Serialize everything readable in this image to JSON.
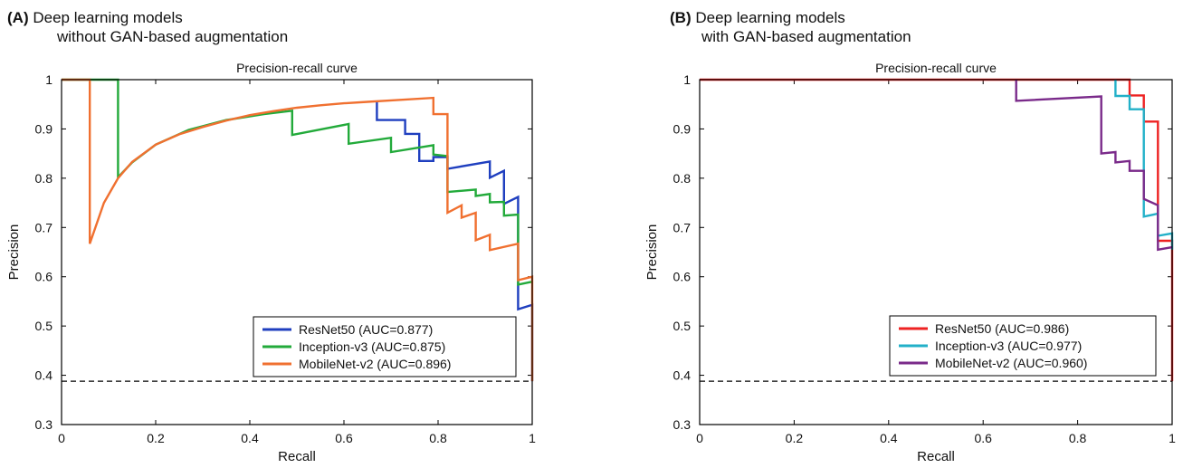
{
  "panels": [
    {
      "tag": "(A)",
      "heading_line1": "Deep learning models",
      "heading_line2": "without GAN-based augmentation"
    },
    {
      "tag": "(B)",
      "heading_line1": "Deep learning models",
      "heading_line2": "with GAN-based augmentation"
    }
  ],
  "chart_data": [
    {
      "type": "line",
      "title": "Precision-recall curve",
      "xlabel": "Recall",
      "ylabel": "Precision",
      "xlim": [
        0,
        1
      ],
      "ylim": [
        0.3,
        1
      ],
      "xticks": [
        "0",
        "0.2",
        "0.4",
        "0.6",
        "0.8",
        "1"
      ],
      "yticks": [
        "0.3",
        "0.4",
        "0.5",
        "0.6",
        "0.7",
        "0.8",
        "0.9",
        "1"
      ],
      "legend_position": "bottom-right",
      "baseline": 0.388,
      "series": [
        {
          "name": "ResNet50 (AUC=0.877)",
          "color": "#1f3fbf",
          "points": [
            [
              0.67,
              0.957
            ],
            [
              0.67,
              0.918
            ],
            [
              0.73,
              0.918
            ],
            [
              0.73,
              0.89
            ],
            [
              0.76,
              0.89
            ],
            [
              0.76,
              0.835
            ],
            [
              0.79,
              0.835
            ],
            [
              0.79,
              0.843
            ],
            [
              0.82,
              0.843
            ],
            [
              0.82,
              0.819
            ],
            [
              0.91,
              0.834
            ],
            [
              0.91,
              0.801
            ],
            [
              0.94,
              0.815
            ],
            [
              0.94,
              0.748
            ],
            [
              0.97,
              0.762
            ],
            [
              0.97,
              0.534
            ],
            [
              1.0,
              0.543
            ],
            [
              1.0,
              0.388
            ]
          ]
        },
        {
          "name": "Inception-v3 (AUC=0.875)",
          "color": "#22aa3a",
          "points": [
            [
              0.0,
              1.0
            ],
            [
              0.12,
              1.0
            ],
            [
              0.12,
              0.802
            ],
            [
              0.15,
              0.832
            ],
            [
              0.2,
              0.868
            ],
            [
              0.27,
              0.898
            ],
            [
              0.35,
              0.918
            ],
            [
              0.43,
              0.93
            ],
            [
              0.49,
              0.937
            ],
            [
              0.49,
              0.888
            ],
            [
              0.61,
              0.91
            ],
            [
              0.61,
              0.87
            ],
            [
              0.7,
              0.882
            ],
            [
              0.7,
              0.853
            ],
            [
              0.79,
              0.867
            ],
            [
              0.79,
              0.848
            ],
            [
              0.82,
              0.845
            ],
            [
              0.82,
              0.772
            ],
            [
              0.88,
              0.777
            ],
            [
              0.88,
              0.764
            ],
            [
              0.91,
              0.768
            ],
            [
              0.91,
              0.751
            ],
            [
              0.94,
              0.752
            ],
            [
              0.94,
              0.724
            ],
            [
              0.97,
              0.726
            ],
            [
              0.97,
              0.584
            ],
            [
              1.0,
              0.59
            ]
          ]
        },
        {
          "name": "MobileNet-v2 (AUC=0.896)",
          "color": "#f07030",
          "points": [
            [
              0.0,
              1.0
            ],
            [
              0.06,
              1.0
            ],
            [
              0.06,
              0.667
            ],
            [
              0.09,
              0.75
            ],
            [
              0.12,
              0.8
            ],
            [
              0.15,
              0.833
            ],
            [
              0.2,
              0.868
            ],
            [
              0.25,
              0.889
            ],
            [
              0.3,
              0.904
            ],
            [
              0.35,
              0.917
            ],
            [
              0.4,
              0.928
            ],
            [
              0.45,
              0.936
            ],
            [
              0.5,
              0.943
            ],
            [
              0.55,
              0.948
            ],
            [
              0.6,
              0.952
            ],
            [
              0.65,
              0.955
            ],
            [
              0.7,
              0.958
            ],
            [
              0.79,
              0.963
            ],
            [
              0.79,
              0.93
            ],
            [
              0.82,
              0.93
            ],
            [
              0.82,
              0.73
            ],
            [
              0.85,
              0.745
            ],
            [
              0.85,
              0.72
            ],
            [
              0.88,
              0.73
            ],
            [
              0.88,
              0.674
            ],
            [
              0.91,
              0.685
            ],
            [
              0.91,
              0.654
            ],
            [
              0.97,
              0.667
            ],
            [
              0.97,
              0.593
            ],
            [
              1.0,
              0.6
            ],
            [
              1.0,
              0.388
            ]
          ]
        }
      ]
    },
    {
      "type": "line",
      "title": "Precision-recall curve",
      "xlabel": "Recall",
      "ylabel": "Precision",
      "xlim": [
        0,
        1
      ],
      "ylim": [
        0.3,
        1
      ],
      "xticks": [
        "0",
        "0.2",
        "0.4",
        "0.6",
        "0.8",
        "1"
      ],
      "yticks": [
        "0.3",
        "0.4",
        "0.5",
        "0.6",
        "0.7",
        "0.8",
        "0.9",
        "1"
      ],
      "legend_position": "bottom-right",
      "baseline": 0.388,
      "series": [
        {
          "name": "ResNet50 (AUC=0.986)",
          "color": "#ee2222",
          "points": [
            [
              0.0,
              1.0
            ],
            [
              0.91,
              1.0
            ],
            [
              0.91,
              0.968
            ],
            [
              0.94,
              0.968
            ],
            [
              0.94,
              0.915
            ],
            [
              0.97,
              0.915
            ],
            [
              0.97,
              0.673
            ],
            [
              1.0,
              0.673
            ],
            [
              1.0,
              0.388
            ]
          ]
        },
        {
          "name": "Inception-v3 (AUC=0.977)",
          "color": "#22b0c8",
          "points": [
            [
              0.88,
              1.0
            ],
            [
              0.88,
              0.967
            ],
            [
              0.91,
              0.967
            ],
            [
              0.91,
              0.94
            ],
            [
              0.94,
              0.94
            ],
            [
              0.94,
              0.887
            ],
            [
              0.94,
              0.722
            ],
            [
              0.97,
              0.728
            ],
            [
              0.97,
              0.683
            ],
            [
              1.0,
              0.688
            ],
            [
              1.0,
              0.655
            ]
          ]
        },
        {
          "name": "MobileNet-v2 (AUC=0.960)",
          "color": "#7a2a8a",
          "points": [
            [
              0.67,
              1.0
            ],
            [
              0.67,
              0.957
            ],
            [
              0.85,
              0.966
            ],
            [
              0.85,
              0.85
            ],
            [
              0.88,
              0.853
            ],
            [
              0.88,
              0.832
            ],
            [
              0.91,
              0.835
            ],
            [
              0.91,
              0.815
            ],
            [
              0.94,
              0.815
            ],
            [
              0.94,
              0.758
            ],
            [
              0.97,
              0.745
            ],
            [
              0.97,
              0.655
            ],
            [
              1.0,
              0.66
            ]
          ]
        }
      ]
    }
  ]
}
